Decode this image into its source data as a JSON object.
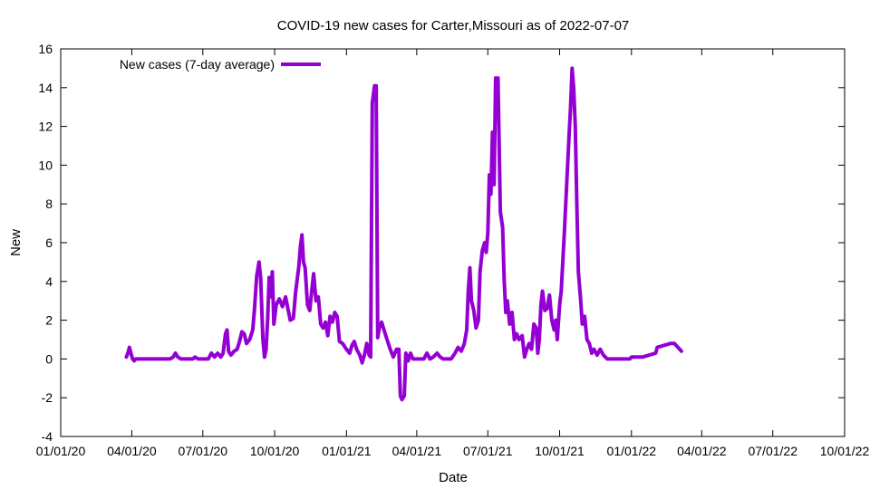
{
  "chart_data": {
    "type": "line",
    "title": "COVID-19 new cases for Carter,Missouri as of 2022-07-07",
    "xlabel": "Date",
    "ylabel": "New",
    "x_range": [
      "2020-01-01",
      "2022-10-01"
    ],
    "ylim": [
      -4,
      16
    ],
    "x_ticks": [
      {
        "date": "2020-01-01",
        "label": "01/01/20"
      },
      {
        "date": "2020-04-01",
        "label": "04/01/20"
      },
      {
        "date": "2020-07-01",
        "label": "07/01/20"
      },
      {
        "date": "2020-10-01",
        "label": "10/01/20"
      },
      {
        "date": "2021-01-01",
        "label": "01/01/21"
      },
      {
        "date": "2021-04-01",
        "label": "04/01/21"
      },
      {
        "date": "2021-07-01",
        "label": "07/01/21"
      },
      {
        "date": "2021-10-01",
        "label": "10/01/21"
      },
      {
        "date": "2022-01-01",
        "label": "01/01/22"
      },
      {
        "date": "2022-04-01",
        "label": "04/01/22"
      },
      {
        "date": "2022-07-01",
        "label": "07/01/22"
      },
      {
        "date": "2022-10-01",
        "label": "10/01/22"
      }
    ],
    "y_ticks": [
      -4,
      -2,
      0,
      2,
      4,
      6,
      8,
      10,
      12,
      14,
      16
    ],
    "grid": false,
    "legend_position": "top-left",
    "series": [
      {
        "name": "New cases (7-day average)",
        "color": "#9400d3",
        "points": [
          [
            "2020-03-25",
            0.1
          ],
          [
            "2020-03-27",
            0.3
          ],
          [
            "2020-03-29",
            0.6
          ],
          [
            "2020-03-31",
            0.3
          ],
          [
            "2020-04-02",
            0.0
          ],
          [
            "2020-04-04",
            -0.1
          ],
          [
            "2020-04-06",
            0.0
          ],
          [
            "2020-05-01",
            0.0
          ],
          [
            "2020-05-20",
            0.0
          ],
          [
            "2020-05-24",
            0.1
          ],
          [
            "2020-05-27",
            0.3
          ],
          [
            "2020-05-30",
            0.1
          ],
          [
            "2020-06-03",
            0.0
          ],
          [
            "2020-06-18",
            0.0
          ],
          [
            "2020-06-21",
            0.1
          ],
          [
            "2020-06-25",
            0.0
          ],
          [
            "2020-07-08",
            0.0
          ],
          [
            "2020-07-12",
            0.3
          ],
          [
            "2020-07-16",
            0.1
          ],
          [
            "2020-07-20",
            0.3
          ],
          [
            "2020-07-24",
            0.1
          ],
          [
            "2020-07-27",
            0.3
          ],
          [
            "2020-07-30",
            1.3
          ],
          [
            "2020-08-01",
            1.5
          ],
          [
            "2020-08-03",
            0.4
          ],
          [
            "2020-08-06",
            0.2
          ],
          [
            "2020-08-10",
            0.4
          ],
          [
            "2020-08-14",
            0.5
          ],
          [
            "2020-08-17",
            0.9
          ],
          [
            "2020-08-20",
            1.4
          ],
          [
            "2020-08-23",
            1.3
          ],
          [
            "2020-08-26",
            0.8
          ],
          [
            "2020-08-30",
            1.0
          ],
          [
            "2020-09-03",
            1.5
          ],
          [
            "2020-09-05",
            2.5
          ],
          [
            "2020-09-08",
            4.3
          ],
          [
            "2020-09-11",
            5.0
          ],
          [
            "2020-09-13",
            4.2
          ],
          [
            "2020-09-16",
            1.0
          ],
          [
            "2020-09-18",
            0.1
          ],
          [
            "2020-09-20",
            0.5
          ],
          [
            "2020-09-22",
            2.0
          ],
          [
            "2020-09-24",
            4.2
          ],
          [
            "2020-09-26",
            3.2
          ],
          [
            "2020-09-28",
            4.5
          ],
          [
            "2020-09-30",
            1.8
          ],
          [
            "2020-10-03",
            2.8
          ],
          [
            "2020-10-07",
            3.1
          ],
          [
            "2020-10-11",
            2.7
          ],
          [
            "2020-10-15",
            3.2
          ],
          [
            "2020-10-18",
            2.6
          ],
          [
            "2020-10-21",
            2.0
          ],
          [
            "2020-10-25",
            2.1
          ],
          [
            "2020-10-28",
            3.5
          ],
          [
            "2020-11-01",
            4.8
          ],
          [
            "2020-11-03",
            5.8
          ],
          [
            "2020-11-05",
            6.4
          ],
          [
            "2020-11-07",
            5.0
          ],
          [
            "2020-11-09",
            4.7
          ],
          [
            "2020-11-12",
            2.8
          ],
          [
            "2020-11-15",
            2.5
          ],
          [
            "2020-11-18",
            3.7
          ],
          [
            "2020-11-20",
            4.4
          ],
          [
            "2020-11-23",
            3.0
          ],
          [
            "2020-11-26",
            3.2
          ],
          [
            "2020-11-29",
            1.8
          ],
          [
            "2020-12-02",
            1.6
          ],
          [
            "2020-12-05",
            1.9
          ],
          [
            "2020-12-08",
            1.2
          ],
          [
            "2020-12-11",
            2.2
          ],
          [
            "2020-12-14",
            1.9
          ],
          [
            "2020-12-17",
            2.4
          ],
          [
            "2020-12-20",
            2.2
          ],
          [
            "2020-12-23",
            0.9
          ],
          [
            "2020-12-27",
            0.8
          ],
          [
            "2021-01-01",
            0.5
          ],
          [
            "2021-01-05",
            0.3
          ],
          [
            "2021-01-08",
            0.7
          ],
          [
            "2021-01-11",
            0.9
          ],
          [
            "2021-01-14",
            0.5
          ],
          [
            "2021-01-18",
            0.2
          ],
          [
            "2021-01-21",
            -0.2
          ],
          [
            "2021-01-24",
            0.2
          ],
          [
            "2021-01-27",
            0.8
          ],
          [
            "2021-01-30",
            0.2
          ],
          [
            "2021-02-01",
            0.1
          ],
          [
            "2021-02-03",
            13.2
          ],
          [
            "2021-02-06",
            14.1
          ],
          [
            "2021-02-08",
            14.1
          ],
          [
            "2021-02-10",
            1.1
          ],
          [
            "2021-02-12",
            1.6
          ],
          [
            "2021-02-15",
            1.9
          ],
          [
            "2021-02-18",
            1.5
          ],
          [
            "2021-02-22",
            1.0
          ],
          [
            "2021-02-26",
            0.5
          ],
          [
            "2021-03-02",
            0.1
          ],
          [
            "2021-03-06",
            0.5
          ],
          [
            "2021-03-09",
            0.5
          ],
          [
            "2021-03-11",
            -1.9
          ],
          [
            "2021-03-13",
            -2.1
          ],
          [
            "2021-03-16",
            -1.9
          ],
          [
            "2021-03-18",
            0.3
          ],
          [
            "2021-03-21",
            -0.1
          ],
          [
            "2021-03-24",
            0.3
          ],
          [
            "2021-03-27",
            0.0
          ],
          [
            "2021-04-10",
            0.0
          ],
          [
            "2021-04-14",
            0.3
          ],
          [
            "2021-04-18",
            0.0
          ],
          [
            "2021-04-22",
            0.1
          ],
          [
            "2021-04-27",
            0.3
          ],
          [
            "2021-05-01",
            0.1
          ],
          [
            "2021-05-05",
            0.0
          ],
          [
            "2021-05-15",
            0.0
          ],
          [
            "2021-05-20",
            0.3
          ],
          [
            "2021-05-24",
            0.6
          ],
          [
            "2021-05-28",
            0.4
          ],
          [
            "2021-06-01",
            0.8
          ],
          [
            "2021-06-04",
            1.5
          ],
          [
            "2021-06-06",
            3.5
          ],
          [
            "2021-06-08",
            4.7
          ],
          [
            "2021-06-10",
            3.0
          ],
          [
            "2021-06-13",
            2.5
          ],
          [
            "2021-06-16",
            1.6
          ],
          [
            "2021-06-19",
            2.0
          ],
          [
            "2021-06-21",
            4.5
          ],
          [
            "2021-06-24",
            5.6
          ],
          [
            "2021-06-27",
            6.0
          ],
          [
            "2021-06-29",
            5.5
          ],
          [
            "2021-07-01",
            6.5
          ],
          [
            "2021-07-03",
            9.5
          ],
          [
            "2021-07-05",
            8.5
          ],
          [
            "2021-07-07",
            11.7
          ],
          [
            "2021-07-09",
            9.0
          ],
          [
            "2021-07-11",
            14.5
          ],
          [
            "2021-07-13",
            13.0
          ],
          [
            "2021-07-14",
            14.5
          ],
          [
            "2021-07-17",
            7.6
          ],
          [
            "2021-07-20",
            6.8
          ],
          [
            "2021-07-22",
            4.0
          ],
          [
            "2021-07-24",
            2.4
          ],
          [
            "2021-07-26",
            3.0
          ],
          [
            "2021-07-29",
            1.8
          ],
          [
            "2021-08-01",
            2.4
          ],
          [
            "2021-08-04",
            1.0
          ],
          [
            "2021-08-07",
            1.3
          ],
          [
            "2021-08-10",
            1.0
          ],
          [
            "2021-08-14",
            1.2
          ],
          [
            "2021-08-17",
            0.1
          ],
          [
            "2021-08-20",
            0.5
          ],
          [
            "2021-08-23",
            0.8
          ],
          [
            "2021-08-26",
            0.5
          ],
          [
            "2021-08-29",
            1.8
          ],
          [
            "2021-09-01",
            1.6
          ],
          [
            "2021-09-03",
            0.3
          ],
          [
            "2021-09-05",
            1.0
          ],
          [
            "2021-09-07",
            2.8
          ],
          [
            "2021-09-09",
            3.5
          ],
          [
            "2021-09-12",
            2.5
          ],
          [
            "2021-09-15",
            2.6
          ],
          [
            "2021-09-18",
            3.3
          ],
          [
            "2021-09-21",
            2.0
          ],
          [
            "2021-09-24",
            1.5
          ],
          [
            "2021-09-26",
            2.0
          ],
          [
            "2021-09-28",
            1.0
          ],
          [
            "2021-10-01",
            2.8
          ],
          [
            "2021-10-03",
            3.5
          ],
          [
            "2021-10-05",
            5.0
          ],
          [
            "2021-10-07",
            6.5
          ],
          [
            "2021-10-10",
            9.0
          ],
          [
            "2021-10-13",
            11.5
          ],
          [
            "2021-10-15",
            13.0
          ],
          [
            "2021-10-17",
            15.0
          ],
          [
            "2021-10-19",
            14.0
          ],
          [
            "2021-10-21",
            12.0
          ],
          [
            "2021-10-23",
            8.0
          ],
          [
            "2021-10-25",
            4.5
          ],
          [
            "2021-10-28",
            3.0
          ],
          [
            "2021-10-30",
            1.8
          ],
          [
            "2021-11-02",
            2.2
          ],
          [
            "2021-11-05",
            1.0
          ],
          [
            "2021-11-08",
            0.8
          ],
          [
            "2021-11-11",
            0.3
          ],
          [
            "2021-11-14",
            0.5
          ],
          [
            "2021-11-18",
            0.2
          ],
          [
            "2021-11-22",
            0.5
          ],
          [
            "2021-11-26",
            0.2
          ],
          [
            "2021-12-01",
            0.0
          ],
          [
            "2021-12-30",
            0.0
          ],
          [
            "2022-01-01",
            0.1
          ],
          [
            "2022-01-15",
            0.1
          ],
          [
            "2022-02-01",
            0.3
          ],
          [
            "2022-02-03",
            0.6
          ],
          [
            "2022-02-20",
            0.8
          ],
          [
            "2022-02-25",
            0.8
          ],
          [
            "2022-03-06",
            0.4
          ]
        ]
      }
    ]
  }
}
